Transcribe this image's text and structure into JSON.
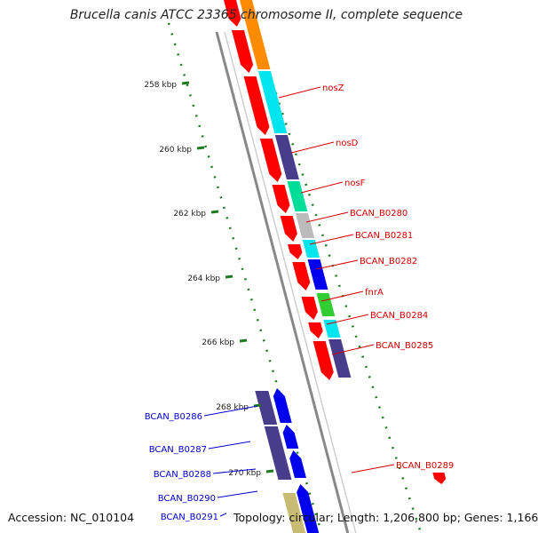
{
  "title": "Brucella canis ATCC 23365 chromosome II, complete sequence",
  "accession": "Accession: NC_010104",
  "summary": "Topology: circular; Length: 1,206,800 bp; Genes: 1,166",
  "scale_ticks": [
    "258 kbp",
    "260 kbp",
    "262 kbp",
    "264 kbp",
    "266 kbp",
    "268 kbp",
    "270 kbp"
  ],
  "colors": {
    "forward_label": "#d40000",
    "reverse_label": "#0000cc",
    "backbone": "#888888",
    "tick": "#1e7a1e",
    "cog_orange": "#ff8c00",
    "cog_cyan": "#00e5ee",
    "cog_navy": "#483d8b",
    "cog_teal": "#00dd99",
    "cog_gray": "#bbbbbb",
    "cog_blue": "#0000ee",
    "cog_green": "#32cd32",
    "cog_khaki": "#c8bc74"
  },
  "forward_genes": [
    "nosZ",
    "nosD",
    "nosF",
    "BCAN_B0280",
    "BCAN_B0281",
    "BCAN_B0282",
    "fnrA",
    "BCAN_B0284",
    "BCAN_B0285",
    "BCAN_B0289"
  ],
  "reverse_genes": [
    "BCAN_B0286",
    "BCAN_B0287",
    "BCAN_B0288",
    "BCAN_B0290",
    "BCAN_B0291"
  ]
}
